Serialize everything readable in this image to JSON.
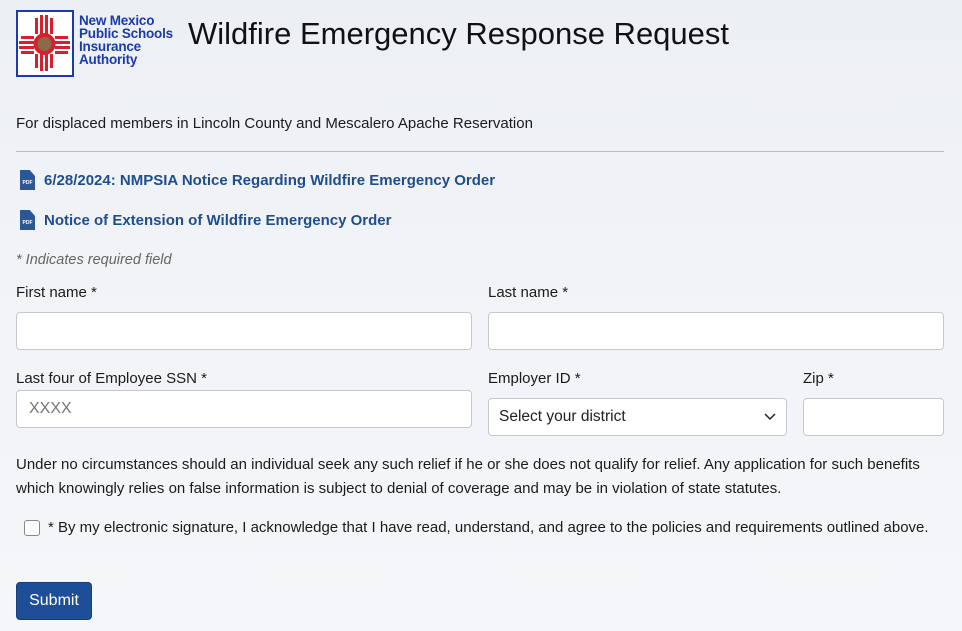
{
  "logo": {
    "text": "New Mexico Public Schools Insurance Authority",
    "lines": [
      "New Mexico",
      "Public Schools",
      "Insurance",
      "Authority"
    ]
  },
  "header": {
    "title": "Wildfire Emergency Response Request"
  },
  "subtitle": "For displaced members in Lincoln County and Mescalero Apache Reservation",
  "links": [
    {
      "label": "6/28/2024: NMPSIA Notice Regarding Wildfire Emergency Order",
      "icon": "pdf-icon"
    },
    {
      "label": "Notice of Extension of Wildfire Emergency Order",
      "icon": "pdf-icon"
    }
  ],
  "form": {
    "required_note": "* Indicates required field",
    "first_name": {
      "label": "First name *",
      "value": ""
    },
    "last_name": {
      "label": "Last name *",
      "value": ""
    },
    "ssn": {
      "label": "Last four of Employee SSN *",
      "placeholder": "XXXX",
      "value": ""
    },
    "employer": {
      "label": "Employer ID *",
      "selected": "Select your district"
    },
    "zip": {
      "label": "Zip *",
      "value": ""
    },
    "disclaimer": "Under no circumstances should an individual seek any such relief if he or she does not qualify for relief. Any application for such benefits which knowingly relies on false information is subject to denial of coverage and may be in violation of state statutes.",
    "agreement": {
      "label": "* By my electronic signature, I acknowledge that I have read, understand, and agree to the policies and requirements outlined above.",
      "checked": false
    },
    "submit_label": "Submit"
  },
  "colors": {
    "brand": "#1c3aa8",
    "link": "#1f4e8f",
    "button": "#1f4e99",
    "zia": "#d7202b"
  }
}
